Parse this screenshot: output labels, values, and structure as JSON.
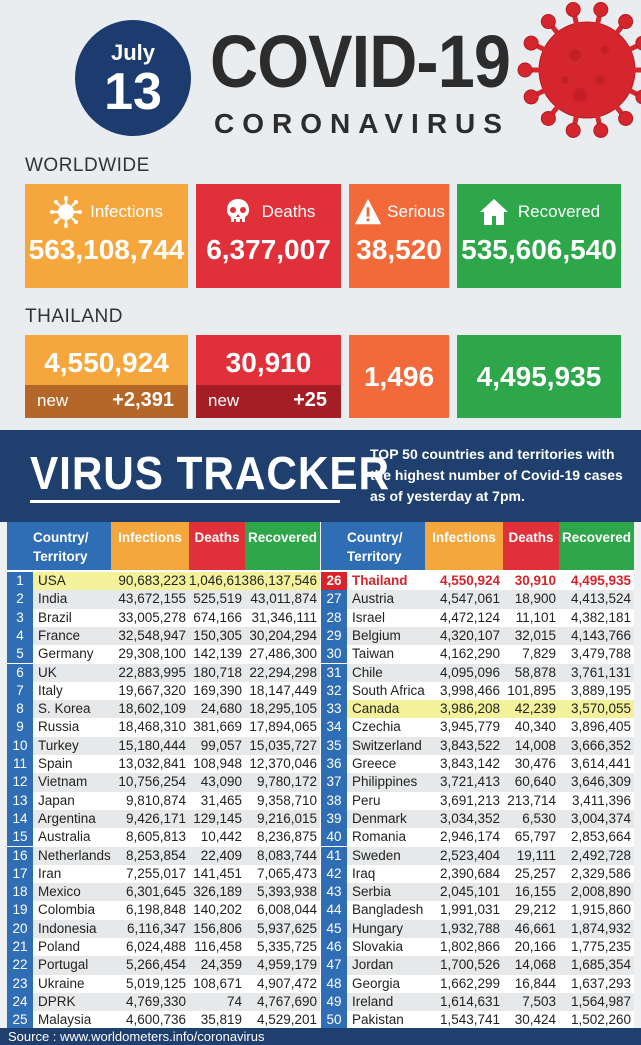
{
  "header": {
    "month": "July",
    "day": "13",
    "title": "COVID-19",
    "subtitle": "CORONAVIRUS"
  },
  "worldwide": {
    "label": "WORLDWIDE",
    "infections_label": "Infections",
    "infections": "563,108,744",
    "deaths_label": "Deaths",
    "deaths": "6,377,007",
    "serious_label": "Serious",
    "serious": "38,520",
    "recovered_label": "Recovered",
    "recovered": "535,606,540"
  },
  "thailand": {
    "label": "THAILAND",
    "infections": "4,550,924",
    "infections_new_label": "new",
    "infections_new": "+2,391",
    "deaths": "30,910",
    "deaths_new_label": "new",
    "deaths_new": "+25",
    "serious": "1,496",
    "recovered": "4,495,935"
  },
  "tracker": {
    "title": "VIRUS TRACKER",
    "desc_bold": "TOP 50",
    "desc_rest": " countries and territories with the highest number of Covid-19 cases as of yesterday at 7pm."
  },
  "colors": {
    "infections": "#f5a63c",
    "deaths": "#e0303a",
    "serious": "#f26a3a",
    "recovered": "#2ea64a",
    "navy": "#1f3f6e",
    "rank_blue": "#2f6db4"
  },
  "chart_data": {
    "type": "table",
    "columns": [
      "Country/ Territory",
      "Infections",
      "Deaths",
      "Recovered"
    ],
    "rows": [
      {
        "rank": "1",
        "country": "USA",
        "infections": "90,683,223",
        "deaths": "1,046,613",
        "recovered": "86,137,546"
      },
      {
        "rank": "2",
        "country": "India",
        "infections": "43,672,155",
        "deaths": "525,519",
        "recovered": "43,011,874"
      },
      {
        "rank": "3",
        "country": "Brazil",
        "infections": "33,005,278",
        "deaths": "674,166",
        "recovered": "31,346,111"
      },
      {
        "rank": "4",
        "country": "France",
        "infections": "32,548,947",
        "deaths": "150,305",
        "recovered": "30,204,294"
      },
      {
        "rank": "5",
        "country": "Germany",
        "infections": "29,308,100",
        "deaths": "142,139",
        "recovered": "27,486,300"
      },
      {
        "rank": "6",
        "country": "UK",
        "infections": "22,883,995",
        "deaths": "180,718",
        "recovered": "22,294,298"
      },
      {
        "rank": "7",
        "country": "Italy",
        "infections": "19,667,320",
        "deaths": "169,390",
        "recovered": "18,147,449"
      },
      {
        "rank": "8",
        "country": "S. Korea",
        "infections": "18,602,109",
        "deaths": "24,680",
        "recovered": "18,295,105"
      },
      {
        "rank": "9",
        "country": "Russia",
        "infections": "18,468,310",
        "deaths": "381,669",
        "recovered": "17,894,065"
      },
      {
        "rank": "10",
        "country": "Turkey",
        "infections": "15,180,444",
        "deaths": "99,057",
        "recovered": "15,035,727"
      },
      {
        "rank": "11",
        "country": "Spain",
        "infections": "13,032,841",
        "deaths": "108,948",
        "recovered": "12,370,046"
      },
      {
        "rank": "12",
        "country": "Vietnam",
        "infections": "10,756,254",
        "deaths": "43,090",
        "recovered": "9,780,172"
      },
      {
        "rank": "13",
        "country": "Japan",
        "infections": "9,810,874",
        "deaths": "31,465",
        "recovered": "9,358,710"
      },
      {
        "rank": "14",
        "country": "Argentina",
        "infections": "9,426,171",
        "deaths": "129,145",
        "recovered": "9,216,015"
      },
      {
        "rank": "15",
        "country": "Australia",
        "infections": "8,605,813",
        "deaths": "10,442",
        "recovered": "8,236,875"
      },
      {
        "rank": "16",
        "country": "Netherlands",
        "infections": "8,253,854",
        "deaths": "22,409",
        "recovered": "8,083,744"
      },
      {
        "rank": "17",
        "country": "Iran",
        "infections": "7,255,017",
        "deaths": "141,451",
        "recovered": "7,065,473"
      },
      {
        "rank": "18",
        "country": "Mexico",
        "infections": "6,301,645",
        "deaths": "326,189",
        "recovered": "5,393,938"
      },
      {
        "rank": "19",
        "country": "Colombia",
        "infections": "6,198,848",
        "deaths": "140,202",
        "recovered": "6,008,044"
      },
      {
        "rank": "20",
        "country": "Indonesia",
        "infections": "6,116,347",
        "deaths": "156,806",
        "recovered": "5,937,625"
      },
      {
        "rank": "21",
        "country": "Poland",
        "infections": "6,024,488",
        "deaths": "116,458",
        "recovered": "5,335,725"
      },
      {
        "rank": "22",
        "country": "Portugal",
        "infections": "5,266,454",
        "deaths": "24,359",
        "recovered": "4,959,179"
      },
      {
        "rank": "23",
        "country": "Ukraine",
        "infections": "5,019,125",
        "deaths": "108,671",
        "recovered": "4,907,472"
      },
      {
        "rank": "24",
        "country": "DPRK",
        "infections": "4,769,330",
        "deaths": "74",
        "recovered": "4,767,690"
      },
      {
        "rank": "25",
        "country": "Malaysia",
        "infections": "4,600,736",
        "deaths": "35,819",
        "recovered": "4,529,201"
      },
      {
        "rank": "26",
        "country": "Thailand",
        "infections": "4,550,924",
        "deaths": "30,910",
        "recovered": "4,495,935"
      },
      {
        "rank": "27",
        "country": "Austria",
        "infections": "4,547,061",
        "deaths": "18,900",
        "recovered": "4,413,524"
      },
      {
        "rank": "28",
        "country": "Israel",
        "infections": "4,472,124",
        "deaths": "11,101",
        "recovered": "4,382,181"
      },
      {
        "rank": "29",
        "country": "Belgium",
        "infections": "4,320,107",
        "deaths": "32,015",
        "recovered": "4,143,766"
      },
      {
        "rank": "30",
        "country": "Taiwan",
        "infections": "4,162,290",
        "deaths": "7,829",
        "recovered": "3,479,788"
      },
      {
        "rank": "31",
        "country": "Chile",
        "infections": "4,095,096",
        "deaths": "58,878",
        "recovered": "3,761,131"
      },
      {
        "rank": "32",
        "country": "South Africa",
        "infections": "3,998,466",
        "deaths": "101,895",
        "recovered": "3,889,195"
      },
      {
        "rank": "33",
        "country": "Canada",
        "infections": "3,986,208",
        "deaths": "42,239",
        "recovered": "3,570,055"
      },
      {
        "rank": "34",
        "country": "Czechia",
        "infections": "3,945,779",
        "deaths": "40,340",
        "recovered": "3,896,405"
      },
      {
        "rank": "35",
        "country": "Switzerland",
        "infections": "3,843,522",
        "deaths": "14,008",
        "recovered": "3,666,352"
      },
      {
        "rank": "36",
        "country": "Greece",
        "infections": "3,843,142",
        "deaths": "30,476",
        "recovered": "3,614,441"
      },
      {
        "rank": "37",
        "country": "Philippines",
        "infections": "3,721,413",
        "deaths": "60,640",
        "recovered": "3,646,309"
      },
      {
        "rank": "38",
        "country": "Peru",
        "infections": "3,691,213",
        "deaths": "213,714",
        "recovered": "3,411,396"
      },
      {
        "rank": "39",
        "country": "Denmark",
        "infections": "3,034,352",
        "deaths": "6,530",
        "recovered": "3,004,374"
      },
      {
        "rank": "40",
        "country": "Romania",
        "infections": "2,946,174",
        "deaths": "65,797",
        "recovered": "2,853,664"
      },
      {
        "rank": "41",
        "country": "Sweden",
        "infections": "2,523,404",
        "deaths": "19,111",
        "recovered": "2,492,728"
      },
      {
        "rank": "42",
        "country": "Iraq",
        "infections": "2,390,684",
        "deaths": "25,257",
        "recovered": "2,329,586"
      },
      {
        "rank": "43",
        "country": "Serbia",
        "infections": "2,045,101",
        "deaths": "16,155",
        "recovered": "2,008,890"
      },
      {
        "rank": "44",
        "country": "Bangladesh",
        "infections": "1,991,031",
        "deaths": "29,212",
        "recovered": "1,915,860"
      },
      {
        "rank": "45",
        "country": "Hungary",
        "infections": "1,932,788",
        "deaths": "46,661",
        "recovered": "1,874,932"
      },
      {
        "rank": "46",
        "country": "Slovakia",
        "infections": "1,802,866",
        "deaths": "20,166",
        "recovered": "1,775,235"
      },
      {
        "rank": "47",
        "country": "Jordan",
        "infections": "1,700,526",
        "deaths": "14,068",
        "recovered": "1,685,354"
      },
      {
        "rank": "48",
        "country": "Georgia",
        "infections": "1,662,299",
        "deaths": "16,844",
        "recovered": "1,637,293"
      },
      {
        "rank": "49",
        "country": "Ireland",
        "infections": "1,614,631",
        "deaths": "7,503",
        "recovered": "1,564,987"
      },
      {
        "rank": "50",
        "country": "Pakistan",
        "infections": "1,543,741",
        "deaths": "30,424",
        "recovered": "1,502,260"
      }
    ],
    "highlight_yellow": [
      "USA",
      "Canada"
    ],
    "highlight_red": [
      "Thailand"
    ]
  },
  "source": "Source : www.worldometers.info/coronavirus"
}
